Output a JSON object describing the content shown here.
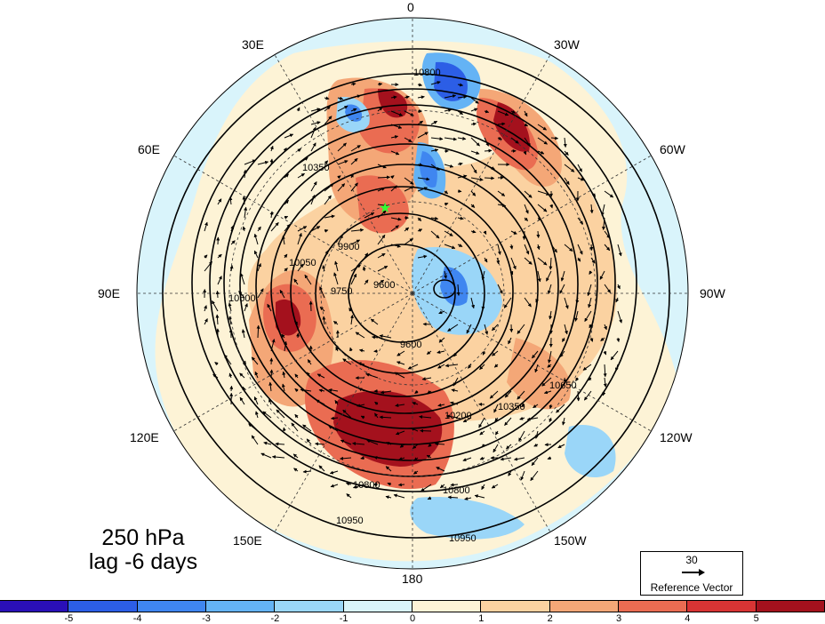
{
  "title": {
    "level": "250 hPa",
    "lag": "lag -6 days"
  },
  "longitude_labels": [
    "0",
    "30W",
    "60W",
    "90W",
    "120W",
    "150W",
    "180",
    "150E",
    "120E",
    "90E",
    "60E",
    "30E"
  ],
  "contour_labels": [
    "10800",
    "10350",
    "10050",
    "10200",
    "10650",
    "9900",
    "9750",
    "9600",
    "10950",
    "10500"
  ],
  "reference_vector": {
    "value": "30",
    "label": "Reference Vector"
  },
  "colorbar": {
    "colors": [
      "#2a0fb8",
      "#2c5ee6",
      "#3f86f0",
      "#64b3f5",
      "#9ad6f8",
      "#d9f4fb",
      "#fdf3d6",
      "#fbd2a1",
      "#f4a777",
      "#ea6c52",
      "#d83434",
      "#a4111d"
    ],
    "ticks": [
      "-5",
      "-4",
      "-3",
      "-2",
      "-1",
      "0",
      "1",
      "2",
      "3",
      "4",
      "5"
    ]
  },
  "marker": {
    "symbol": "star",
    "color": "#33ff33"
  }
}
